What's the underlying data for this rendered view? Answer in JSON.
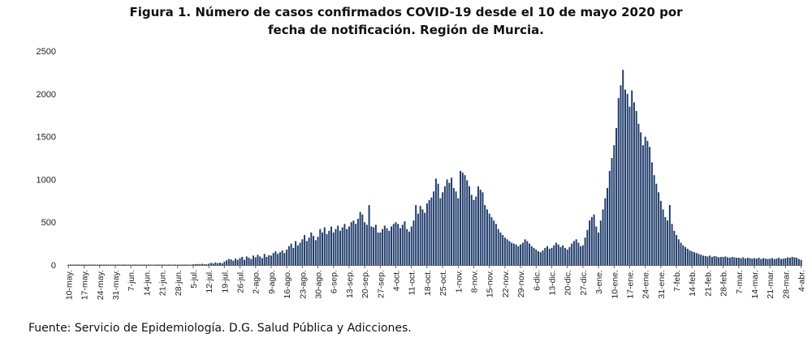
{
  "chart_data": {
    "type": "bar",
    "title_line1": "Figura 1. Número de casos confirmados COVID-19 desde el 10 de mayo 2020 por",
    "title_line2": "fecha de notificación. Región de Murcia.",
    "source": "Fuente: Servicio de Epidemiología. D.G. Salud Pública y Adicciones.",
    "color": "#1f3b6b",
    "ylim": [
      0,
      2500
    ],
    "yticks": [
      "0",
      "500",
      "1000",
      "1500",
      "2000",
      "2500"
    ],
    "xtick_labels": [
      "10-may.",
      "17-may.",
      "24-may.",
      "31-may.",
      "7-jun.",
      "14-jun.",
      "21-jun.",
      "28-jun.",
      "5-jul.",
      "12-jul.",
      "19-jul.",
      "26-jul.",
      "2-ago.",
      "9-ago.",
      "16-ago.",
      "23-ago.",
      "30-ago.",
      "6-sep.",
      "13-sep.",
      "20-sep.",
      "27-sep.",
      "4-oct.",
      "11-oct.",
      "18-oct.",
      "25-oct.",
      "1-nov.",
      "8-nov.",
      "15-nov.",
      "22-nov.",
      "29-nov.",
      "6-dic.",
      "13-dic.",
      "20-dic.",
      "27-dic.",
      "3-ene.",
      "10-ene.",
      "17-ene.",
      "24-ene.",
      "31-ene.",
      "7-feb.",
      "14-feb.",
      "21-feb.",
      "28-feb.",
      "7-mar.",
      "14-mar.",
      "21-mar.",
      "28-mar.",
      "4-abr."
    ],
    "weekly_values": [
      [
        5,
        6,
        5,
        5,
        6,
        5,
        5
      ],
      [
        5,
        6,
        5,
        6,
        5,
        5,
        5
      ],
      [
        6,
        5,
        5,
        6,
        5,
        5,
        5
      ],
      [
        5,
        6,
        5,
        5,
        6,
        5,
        5
      ],
      [
        5,
        5,
        6,
        5,
        5,
        6,
        5
      ],
      [
        5,
        6,
        5,
        5,
        5,
        6,
        5
      ],
      [
        6,
        5,
        5,
        6,
        5,
        5,
        5
      ],
      [
        5,
        5,
        6,
        5,
        6,
        5,
        5
      ],
      [
        8,
        10,
        12,
        9,
        14,
        10,
        8
      ],
      [
        15,
        25,
        18,
        30,
        22,
        28,
        20
      ],
      [
        40,
        55,
        70,
        65,
        50,
        75,
        60
      ],
      [
        80,
        95,
        60,
        100,
        85,
        70,
        110
      ],
      [
        90,
        120,
        100,
        80,
        130,
        95,
        115
      ],
      [
        110,
        140,
        160,
        130,
        150,
        170,
        140
      ],
      [
        180,
        220,
        250,
        200,
        280,
        230,
        260
      ],
      [
        300,
        350,
        280,
        320,
        380,
        340,
        290
      ],
      [
        330,
        420,
        380,
        440,
        360,
        400,
        450
      ],
      [
        380,
        420,
        460,
        400,
        440,
        480,
        420
      ],
      [
        450,
        500,
        520,
        480,
        540,
        620,
        590
      ],
      [
        500,
        470,
        700,
        450,
        440,
        470,
        380
      ],
      [
        380,
        420,
        460,
        430,
        400,
        450,
        480
      ],
      [
        500,
        480,
        430,
        470,
        510,
        420,
        390
      ],
      [
        450,
        520,
        700,
        600,
        690,
        650,
        610
      ],
      [
        720,
        760,
        790,
        860,
        1010,
        950,
        780
      ],
      [
        850,
        920,
        1000,
        960,
        1020,
        900,
        860
      ],
      [
        780,
        1100,
        1080,
        1050,
        990,
        920,
        820
      ],
      [
        760,
        800,
        920,
        880,
        850,
        700,
        650
      ],
      [
        600,
        560,
        520,
        480,
        420,
        380,
        350
      ],
      [
        320,
        300,
        280,
        260,
        250,
        240,
        220
      ],
      [
        240,
        260,
        300,
        280,
        250,
        220,
        200
      ],
      [
        180,
        160,
        150,
        170,
        200,
        220,
        190
      ],
      [
        200,
        230,
        260,
        240,
        210,
        230,
        200
      ],
      [
        180,
        210,
        250,
        280,
        300,
        260,
        220
      ],
      [
        230,
        320,
        410,
        520,
        560,
        590,
        450
      ],
      [
        380,
        520,
        650,
        780,
        900,
        1100,
        1250
      ],
      [
        1400,
        1600,
        1950,
        2100,
        2280,
        2050,
        2000
      ],
      [
        1850,
        2040,
        1900,
        1800,
        1650,
        1550,
        1400
      ],
      [
        1500,
        1450,
        1380,
        1200,
        1050,
        950,
        850
      ],
      [
        750,
        650,
        560,
        520,
        700,
        480,
        400
      ],
      [
        350,
        300,
        260,
        230,
        210,
        190,
        170
      ],
      [
        160,
        150,
        140,
        130,
        120,
        110,
        105
      ],
      [
        100,
        110,
        95,
        105,
        100,
        90,
        95
      ],
      [
        95,
        100,
        90,
        85,
        95,
        90,
        85
      ],
      [
        85,
        80,
        90,
        75,
        85,
        80,
        75
      ],
      [
        80,
        75,
        85,
        70,
        80,
        75,
        70
      ],
      [
        75,
        80,
        70,
        75,
        85,
        70,
        75
      ],
      [
        80,
        90,
        85,
        95,
        90,
        85,
        70
      ],
      [
        60
      ]
    ]
  }
}
